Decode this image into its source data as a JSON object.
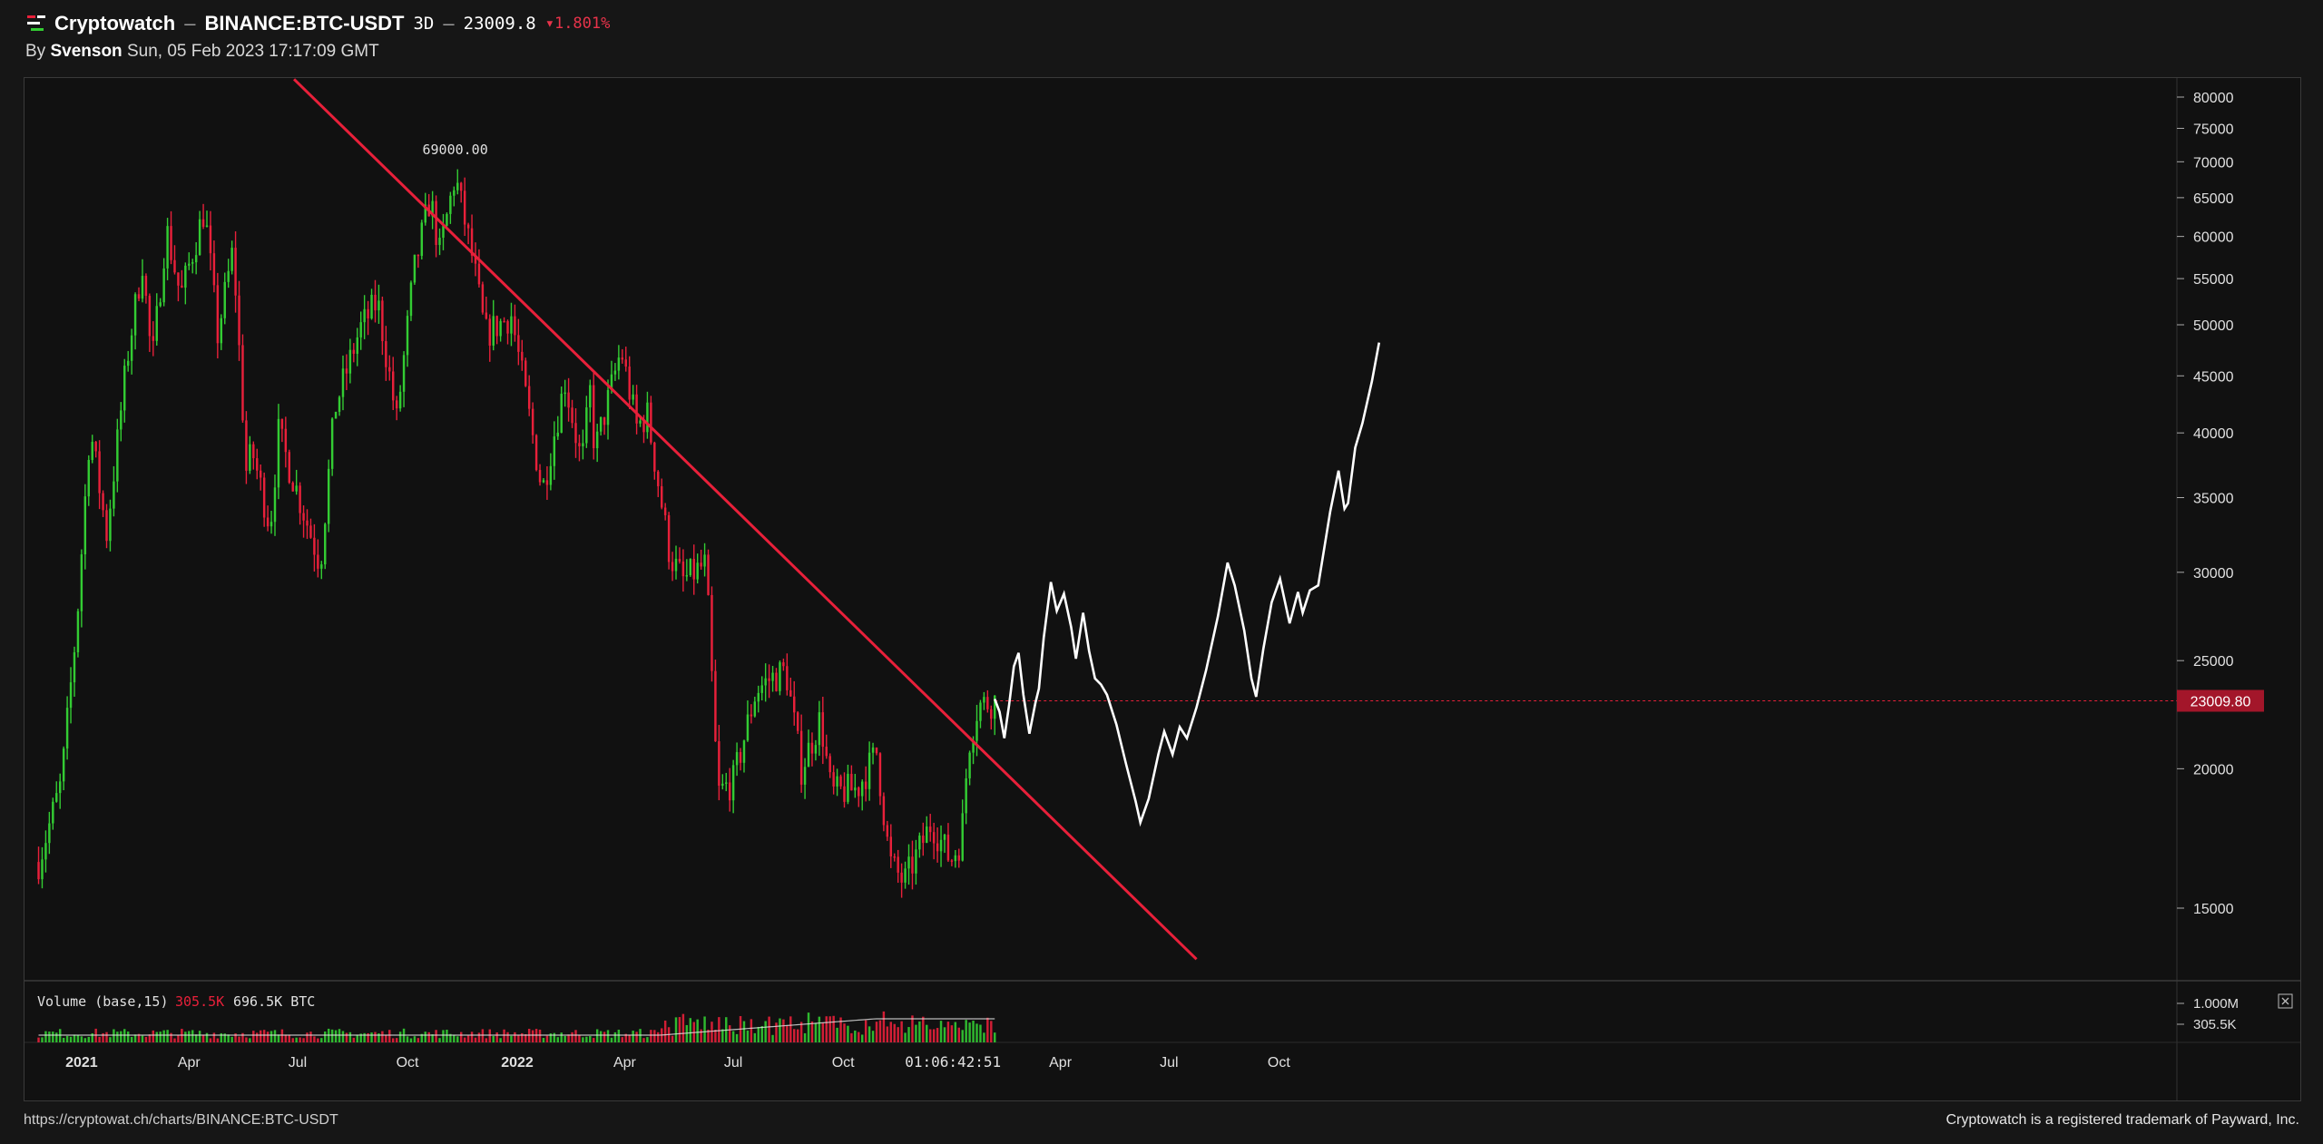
{
  "header": {
    "brand": "Cryptowatch",
    "separator": "–",
    "pair": "BINANCE:BTC-USDT",
    "timeframe": "3D",
    "price": "23009.8",
    "change": "1.801%",
    "change_arrow": "▾",
    "by_label": "By",
    "author": "Svenson",
    "timestamp": "Sun, 05 Feb 2023 17:17:09 GMT"
  },
  "footer": {
    "url": "https://cryptowat.ch/charts/BINANCE:BTC-USDT",
    "trademark": "Cryptowatch is a registered trademark of Payward, Inc."
  },
  "colors": {
    "background": "#111111",
    "up": "#33cc33",
    "down": "#e8203a",
    "trendline": "#e8203a",
    "projection": "#ffffff",
    "price_tag": "#a3162a"
  },
  "chart_data": {
    "type": "candlestick",
    "scale": "log",
    "ylim": [
      13500,
      83000
    ],
    "price_ticks": [
      80000,
      75000,
      70000,
      65000,
      60000,
      55000,
      50000,
      45000,
      40000,
      35000,
      30000,
      25000,
      20000,
      15000
    ],
    "x_ticks": [
      "2021",
      "Apr",
      "Jul",
      "Oct",
      "2022",
      "Apr",
      "Jul",
      "Oct",
      "01:06:42:51",
      "Apr",
      "Jul",
      "Oct"
    ],
    "x_tick_dates": [
      "2021-01-01",
      "2021-04-01",
      "2021-07-01",
      "2021-10-01",
      "2022-01-01",
      "2022-04-01",
      "2022-07-01",
      "2022-10-01",
      "2023-01-01",
      "2023-04-01",
      "2023-07-01",
      "2023-10-01"
    ],
    "peak_label": "69000.00",
    "current_price_label": "23009.80",
    "current_price": 23009.8,
    "anchors": [
      [
        "2020-11-26",
        16500
      ],
      [
        "2020-12-15",
        19400
      ],
      [
        "2020-12-28",
        27000
      ],
      [
        "2021-01-08",
        40500
      ],
      [
        "2021-01-22",
        32500
      ],
      [
        "2021-02-08",
        46500
      ],
      [
        "2021-02-21",
        57000
      ],
      [
        "2021-03-01",
        46000
      ],
      [
        "2021-03-13",
        61000
      ],
      [
        "2021-03-25",
        53000
      ],
      [
        "2021-04-14",
        63500
      ],
      [
        "2021-04-25",
        49000
      ],
      [
        "2021-05-08",
        58500
      ],
      [
        "2021-05-19",
        37000
      ],
      [
        "2021-05-24",
        38500
      ],
      [
        "2021-06-08",
        33000
      ],
      [
        "2021-06-15",
        40000
      ],
      [
        "2021-07-20",
        30500
      ],
      [
        "2021-08-01",
        42000
      ],
      [
        "2021-08-22",
        49500
      ],
      [
        "2021-09-06",
        52500
      ],
      [
        "2021-09-22",
        41000
      ],
      [
        "2021-10-06",
        55500
      ],
      [
        "2021-10-20",
        65000
      ],
      [
        "2021-10-28",
        58000
      ],
      [
        "2021-11-10",
        68000
      ],
      [
        "2021-11-25",
        57000
      ],
      [
        "2021-12-05",
        49000
      ],
      [
        "2021-12-27",
        51000
      ],
      [
        "2022-01-22",
        35500
      ],
      [
        "2022-02-10",
        44500
      ],
      [
        "2022-02-24",
        37500
      ],
      [
        "2022-03-03",
        43500
      ],
      [
        "2022-03-07",
        38500
      ],
      [
        "2022-03-29",
        47500
      ],
      [
        "2022-04-11",
        40500
      ],
      [
        "2022-04-20",
        41500
      ],
      [
        "2022-05-09",
        31000
      ],
      [
        "2022-05-20",
        29500
      ],
      [
        "2022-06-08",
        30500
      ],
      [
        "2022-06-18",
        19000
      ],
      [
        "2022-07-01",
        19500
      ],
      [
        "2022-07-20",
        23500
      ],
      [
        "2022-07-30",
        24000
      ],
      [
        "2022-08-14",
        24500
      ],
      [
        "2022-08-27",
        20000
      ],
      [
        "2022-09-12",
        22200
      ],
      [
        "2022-09-21",
        19000
      ],
      [
        "2022-10-13",
        19200
      ],
      [
        "2022-10-29",
        20700
      ],
      [
        "2022-11-09",
        16500
      ],
      [
        "2022-11-21",
        15800
      ],
      [
        "2022-12-14",
        17900
      ],
      [
        "2022-12-30",
        16550
      ],
      [
        "2023-01-08",
        17300
      ],
      [
        "2023-01-14",
        21000
      ],
      [
        "2023-01-22",
        22800
      ],
      [
        "2023-02-05",
        23009
      ]
    ],
    "volume": {
      "label": "Volume (base,15)",
      "last_value": "305.5K",
      "ma_value": "696.5K BTC",
      "ticks": [
        "1.000M",
        "305.5K"
      ]
    },
    "trendline": {
      "p1": [
        "2021-06-28",
        83000
      ],
      "p2": [
        "2023-07-24",
        13500
      ]
    },
    "projection": {
      "label": "",
      "points": [
        [
          "2023-02-05",
          23100
        ],
        [
          "2023-02-09",
          22500
        ],
        [
          "2023-02-13",
          21300
        ],
        [
          "2023-02-17",
          22800
        ],
        [
          "2023-02-21",
          24700
        ],
        [
          "2023-02-25",
          25400
        ],
        [
          "2023-03-01",
          23300
        ],
        [
          "2023-03-06",
          21500
        ],
        [
          "2023-03-11",
          22900
        ],
        [
          "2023-03-14",
          23600
        ],
        [
          "2023-03-18",
          26200
        ],
        [
          "2023-03-24",
          29400
        ],
        [
          "2023-03-29",
          27700
        ],
        [
          "2023-04-04",
          28700
        ],
        [
          "2023-04-10",
          26800
        ],
        [
          "2023-04-14",
          25100
        ],
        [
          "2023-04-20",
          27600
        ],
        [
          "2023-04-25",
          25500
        ],
        [
          "2023-04-30",
          24100
        ],
        [
          "2023-05-05",
          23800
        ],
        [
          "2023-05-10",
          23300
        ],
        [
          "2023-05-18",
          21900
        ],
        [
          "2023-05-26",
          20200
        ],
        [
          "2023-06-03",
          18700
        ],
        [
          "2023-06-07",
          17900
        ],
        [
          "2023-06-14",
          18800
        ],
        [
          "2023-06-22",
          20600
        ],
        [
          "2023-06-27",
          21600
        ],
        [
          "2023-07-04",
          20600
        ],
        [
          "2023-07-10",
          21800
        ],
        [
          "2023-07-16",
          21300
        ],
        [
          "2023-07-24",
          22700
        ],
        [
          "2023-08-01",
          24500
        ],
        [
          "2023-08-11",
          27400
        ],
        [
          "2023-08-19",
          30600
        ],
        [
          "2023-08-25",
          29200
        ],
        [
          "2023-09-02",
          26600
        ],
        [
          "2023-09-08",
          24100
        ],
        [
          "2023-09-12",
          23200
        ],
        [
          "2023-09-18",
          25600
        ],
        [
          "2023-09-25",
          28200
        ],
        [
          "2023-10-02",
          29600
        ],
        [
          "2023-10-10",
          27000
        ],
        [
          "2023-10-17",
          28800
        ],
        [
          "2023-10-21",
          27600
        ],
        [
          "2023-10-27",
          28900
        ],
        [
          "2023-11-03",
          29200
        ],
        [
          "2023-11-13",
          34000
        ],
        [
          "2023-11-20",
          37000
        ],
        [
          "2023-11-25",
          34200
        ],
        [
          "2023-11-28",
          34600
        ],
        [
          "2023-12-04",
          38800
        ],
        [
          "2023-12-10",
          40800
        ],
        [
          "2023-12-18",
          44500
        ],
        [
          "2023-12-24",
          48200
        ]
      ]
    }
  }
}
